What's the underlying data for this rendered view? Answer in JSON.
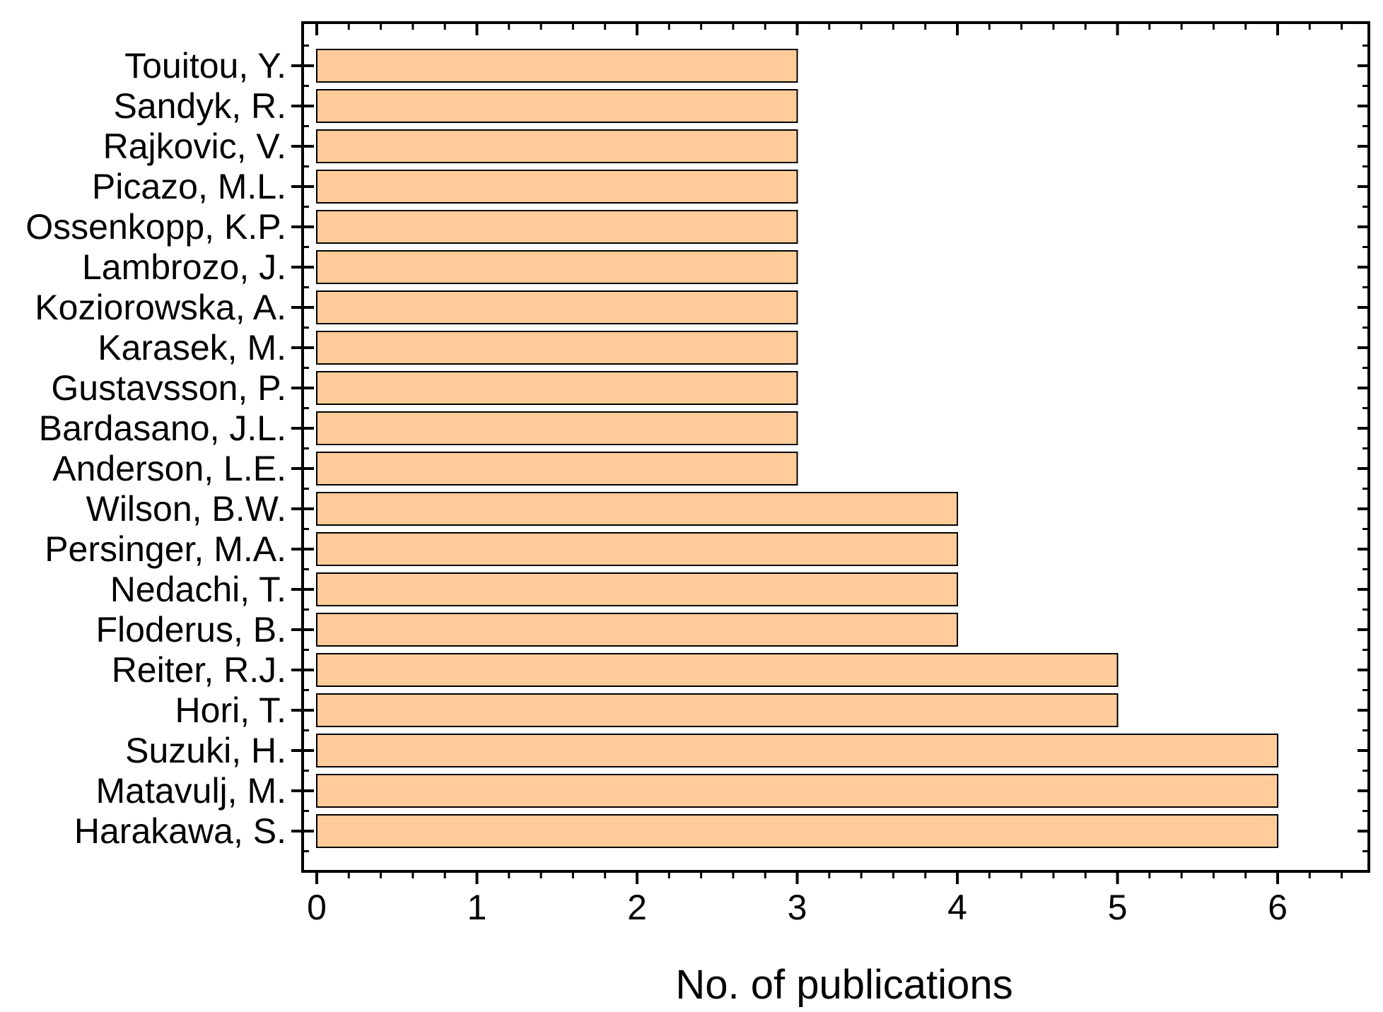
{
  "chart_data": {
    "type": "bar",
    "orientation": "horizontal",
    "categories": [
      "Harakawa, S.",
      "Matavulj, M.",
      "Suzuki, H.",
      "Hori, T.",
      "Reiter, R.J.",
      "Floderus, B.",
      "Nedachi, T.",
      "Persinger, M.A.",
      "Wilson, B.W.",
      "Anderson, L.E.",
      "Bardasano, J.L.",
      "Gustavsson, P.",
      "Karasek, M.",
      "Koziorowska, A.",
      "Lambrozo, J.",
      "Ossenkopp, K.P.",
      "Picazo, M.L.",
      "Rajkovic, V.",
      "Sandyk, R.",
      "Touitou, Y."
    ],
    "values": [
      6,
      6,
      6,
      5,
      5,
      4,
      4,
      4,
      4,
      3,
      3,
      3,
      3,
      3,
      3,
      3,
      3,
      3,
      3,
      3
    ],
    "xlabel": "No. of publications",
    "ylabel": "",
    "xlim": [
      0,
      6.6
    ],
    "xticks": [
      0,
      1,
      2,
      3,
      4,
      5,
      6
    ],
    "grid": false,
    "legend": "none",
    "bar_color": "#FFCC99",
    "bar_edge_color": "#000000"
  }
}
